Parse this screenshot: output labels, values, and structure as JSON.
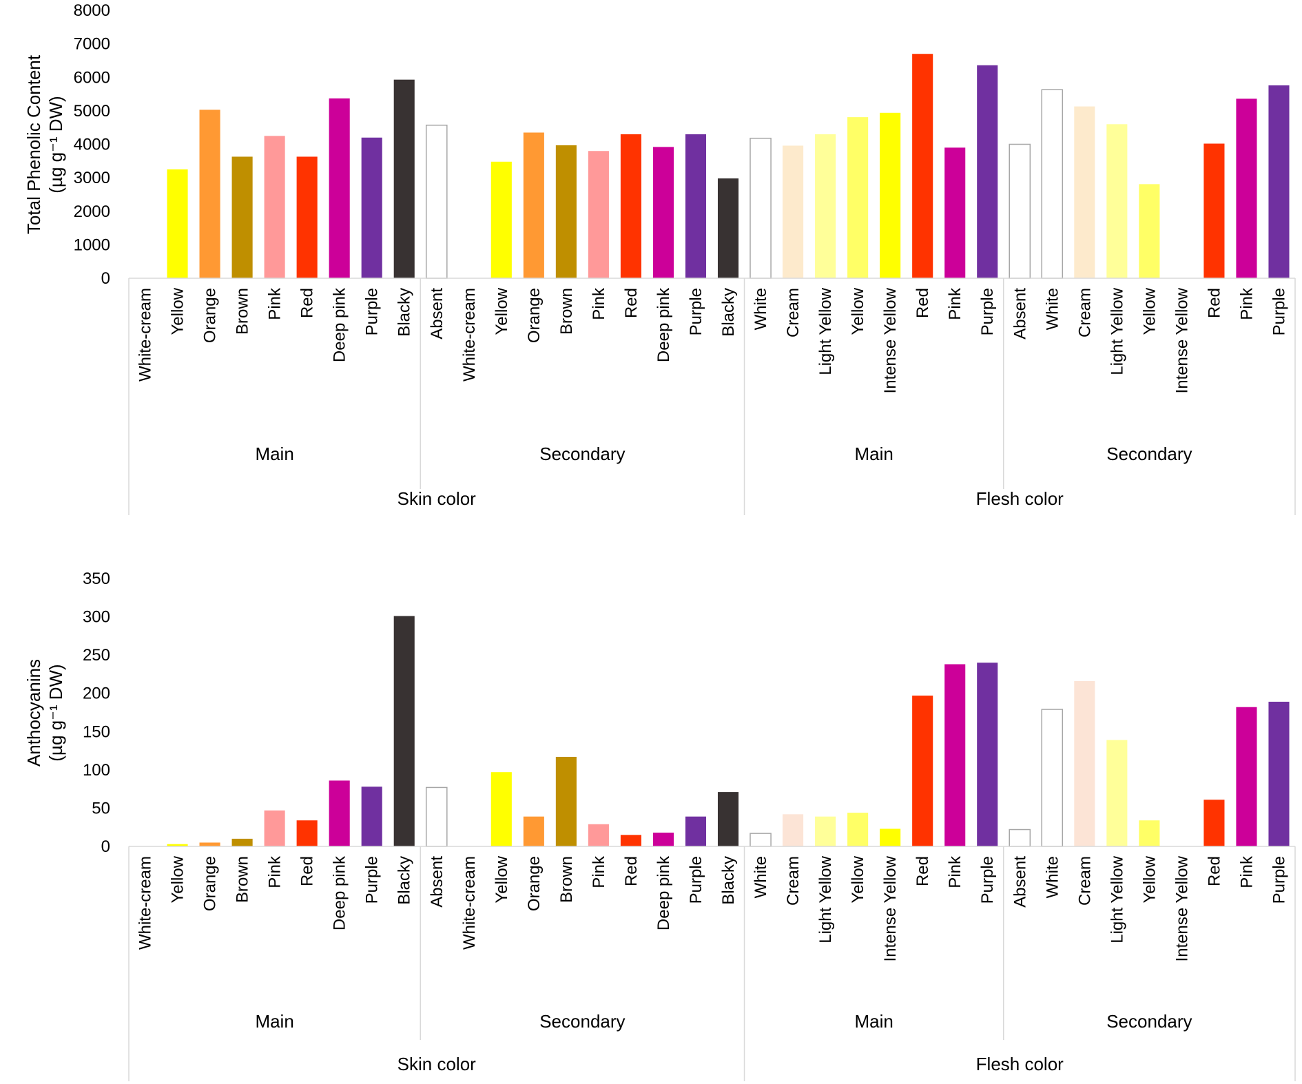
{
  "chart_data": [
    {
      "type": "bar",
      "ylabel_line1": "Total Phenolic Content",
      "ylabel_line2": "(µg g⁻¹ DW)",
      "ylim": [
        0,
        8000
      ],
      "yticks": [
        "0",
        "1000",
        "2000",
        "3000",
        "4000",
        "5000",
        "6000",
        "7000",
        "8000"
      ],
      "grid": false,
      "top_groups": [
        "Skin color",
        "Flesh color"
      ],
      "sub_groups": [
        "Main",
        "Secondary",
        "Main",
        "Secondary"
      ],
      "categories": [
        "White-cream",
        "Yellow",
        "Orange",
        "Brown",
        "Pink",
        "Red",
        "Deep pink",
        "Purple",
        "Blacky",
        "Absent",
        "White-cream",
        "Yellow",
        "Orange",
        "Brown",
        "Pink",
        "Red",
        "Deep pink",
        "Purple",
        "Blacky",
        "White",
        "Cream",
        "Light Yellow",
        "Yellow",
        "Intense Yellow",
        "Red",
        "Pink",
        "Purple",
        "Absent",
        "White",
        "Cream",
        "Light Yellow",
        "Yellow",
        "Intense Yellow",
        "Red",
        "Pink",
        "Purple"
      ],
      "values": [
        null,
        3250,
        5030,
        3630,
        4250,
        3630,
        5370,
        4200,
        5930,
        4570,
        null,
        3480,
        4350,
        3970,
        3800,
        4300,
        3920,
        4300,
        2980,
        4180,
        3960,
        4300,
        4810,
        4940,
        6700,
        3900,
        6360,
        4000,
        5630,
        5130,
        4600,
        2810,
        null,
        4020,
        5360,
        5760
      ]
    },
    {
      "type": "bar",
      "ylabel_line1": "Anthocyanins",
      "ylabel_line2": "(µg g⁻¹ DW)",
      "ylim": [
        0,
        350
      ],
      "yticks": [
        "0",
        "50",
        "100",
        "150",
        "200",
        "250",
        "300",
        "350"
      ],
      "grid": false,
      "top_groups": [
        "Skin color",
        "Flesh color"
      ],
      "sub_groups": [
        "Main",
        "Secondary",
        "Main",
        "Secondary"
      ],
      "categories": [
        "White-cream",
        "Yellow",
        "Orange",
        "Brown",
        "Pink",
        "Red",
        "Deep pink",
        "Purple",
        "Blacky",
        "Absent",
        "White-cream",
        "Yellow",
        "Orange",
        "Brown",
        "Pink",
        "Red",
        "Deep pink",
        "Purple",
        "Blacky",
        "White",
        "Cream",
        "Light Yellow",
        "Yellow",
        "Intense Yellow",
        "Red",
        "Pink",
        "Purple",
        "Absent",
        "White",
        "Cream",
        "Light Yellow",
        "Yellow",
        "Intense Yellow",
        "Red",
        "Pink",
        "Purple"
      ],
      "values": [
        null,
        3,
        5,
        10,
        47,
        34,
        86,
        78,
        301,
        77,
        null,
        97,
        39,
        117,
        29,
        15,
        18,
        39,
        71,
        17,
        42,
        39,
        44,
        23,
        197,
        238,
        240,
        22,
        179,
        216,
        139,
        34,
        null,
        61,
        182,
        189
      ]
    }
  ],
  "colors": {
    "bars": [
      "#ffffff",
      "#ffff00",
      "#ff9933",
      "#bf8f00",
      "#ff9999",
      "#ff3300",
      "#cc0099",
      "#7030a0",
      "#383232",
      "#ffffff",
      "#ffffff",
      "#ffff00",
      "#ff9933",
      "#bf8f00",
      "#ff9999",
      "#ff3300",
      "#cc0099",
      "#7030a0",
      "#383232",
      "#ffffff",
      "#fdeacc",
      "#ffff99",
      "#ffff66",
      "#ffff00",
      "#ff3300",
      "#cc0099",
      "#7030a0",
      "#ffffff",
      "#ffffff",
      "#fdeacc",
      "#ffff99",
      "#ffff66",
      "#ffff00",
      "#ff3300",
      "#cc0099",
      "#7030a0"
    ],
    "bars_anthocyanins_overrides": {
      "20": "#fce4d6",
      "29": "#fce4d6"
    },
    "white_bar_outline": "#a6a6a6",
    "axis_line": "#d9d9d9"
  }
}
